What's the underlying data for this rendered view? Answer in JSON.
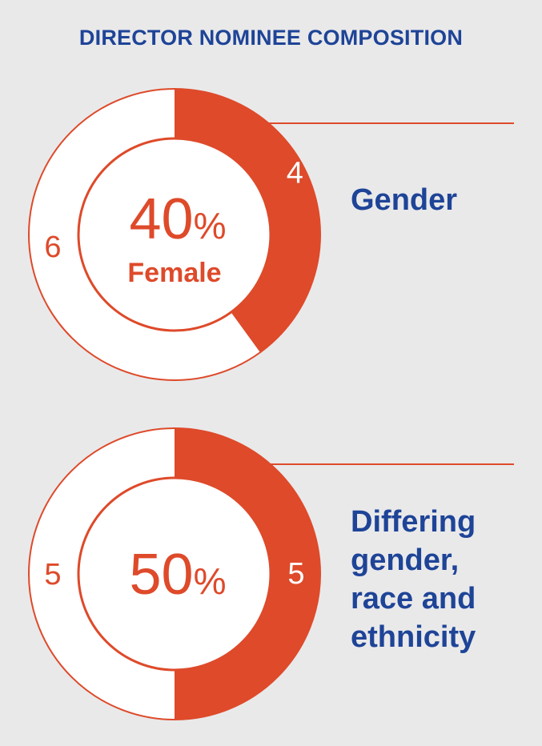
{
  "title": "DIRECTOR NOMINEE COMPOSITION",
  "colors": {
    "accent": "#de4a2a",
    "fill_light": "#ffffff",
    "title_blue": "#1e4497",
    "background": "#e9e9ea"
  },
  "chart_data": [
    {
      "type": "pie",
      "donut": true,
      "title": "Gender",
      "center_value": "40",
      "center_unit": "%",
      "center_label": "Female",
      "slices": [
        {
          "label": "4",
          "value": 4,
          "highlight": true
        },
        {
          "label": "6",
          "value": 6,
          "highlight": false
        }
      ]
    },
    {
      "type": "pie",
      "donut": true,
      "title_lines": [
        "Differing",
        "gender,",
        "race and",
        "ethnicity"
      ],
      "center_value": "50",
      "center_unit": "%",
      "center_label": "",
      "slices": [
        {
          "label": "5",
          "value": 5,
          "highlight": true
        },
        {
          "label": "5",
          "value": 5,
          "highlight": false
        }
      ]
    }
  ]
}
